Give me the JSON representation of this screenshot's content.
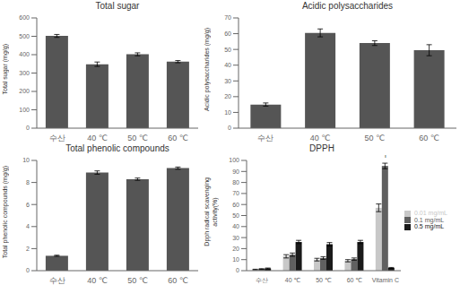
{
  "chart_data": [
    {
      "type": "bar",
      "title": "Total sugar",
      "categories": [
        "수산",
        "40 ℃",
        "50 ℃",
        "60 ℃"
      ],
      "values": [
        502,
        348,
        402,
        362
      ],
      "errors": [
        8,
        12,
        8,
        6
      ],
      "color": "#555555",
      "ylabel": "Total sugar (mg/g)",
      "ylim": [
        0,
        600
      ],
      "yticks": [
        0,
        100,
        200,
        300,
        400,
        500,
        600
      ],
      "grid": false
    },
    {
      "type": "bar",
      "title": "Acidic polysaccharides",
      "categories": [
        "수산",
        "40 ℃",
        "50 ℃",
        "60 ℃"
      ],
      "values": [
        15,
        60.5,
        54,
        49.5
      ],
      "errors": [
        1.0,
        2.5,
        1.5,
        3.5
      ],
      "color": "#555555",
      "ylabel": "Acidic polysaccharides (mg/g)",
      "ylim": [
        0,
        70
      ],
      "yticks": [
        0,
        10,
        20,
        30,
        40,
        50,
        60,
        70
      ],
      "grid": false
    },
    {
      "type": "bar",
      "title": "Total phenolic compounds",
      "categories": [
        "수산",
        "40 ℃",
        "50 ℃",
        "60 ℃"
      ],
      "values": [
        1.35,
        8.9,
        8.3,
        9.3
      ],
      "errors": [
        0.05,
        0.15,
        0.1,
        0.1
      ],
      "color": "#555555",
      "ylabel": "Total phenolic compounds (mg/g)",
      "ylim": [
        0,
        10
      ],
      "yticks": [
        0,
        2,
        4,
        6,
        8,
        10
      ],
      "grid": false
    },
    {
      "type": "bar",
      "title": "DPPH",
      "categories": [
        "수산",
        "40 ℃",
        "50 ℃",
        "60 ℃",
        "Vitamin C"
      ],
      "series": [
        {
          "name": "0.01 mg/mL",
          "color": "#c8c8c8",
          "values": [
            1.0,
            13.0,
            10.0,
            9.0,
            57.0
          ],
          "errors": [
            0.3,
            1.5,
            1.2,
            1.0,
            3.5
          ]
        },
        {
          "name": "0.1 mg/mL",
          "color": "#606060",
          "values": [
            1.5,
            14.5,
            11.5,
            10.5,
            95.0
          ],
          "errors": [
            0.3,
            1.5,
            1.2,
            1.0,
            2.5
          ]
        },
        {
          "name": "0.5 mg/mL",
          "color": "#1a1a1a",
          "values": [
            2.0,
            26.0,
            24.0,
            26.0,
            2.5
          ],
          "errors": [
            0.4,
            1.5,
            1.5,
            1.5,
            0.4
          ]
        }
      ],
      "ylabel": "Dpph radical scavenging\nactivity(%)",
      "ylim": [
        0,
        100
      ],
      "yticks": [
        0,
        10,
        20,
        30,
        40,
        50,
        60,
        70,
        80,
        90,
        100
      ],
      "annotations": [
        {
          "text": "T",
          "x": "Vitamin C",
          "y": 98
        }
      ],
      "legend": "right",
      "grid": false
    }
  ]
}
